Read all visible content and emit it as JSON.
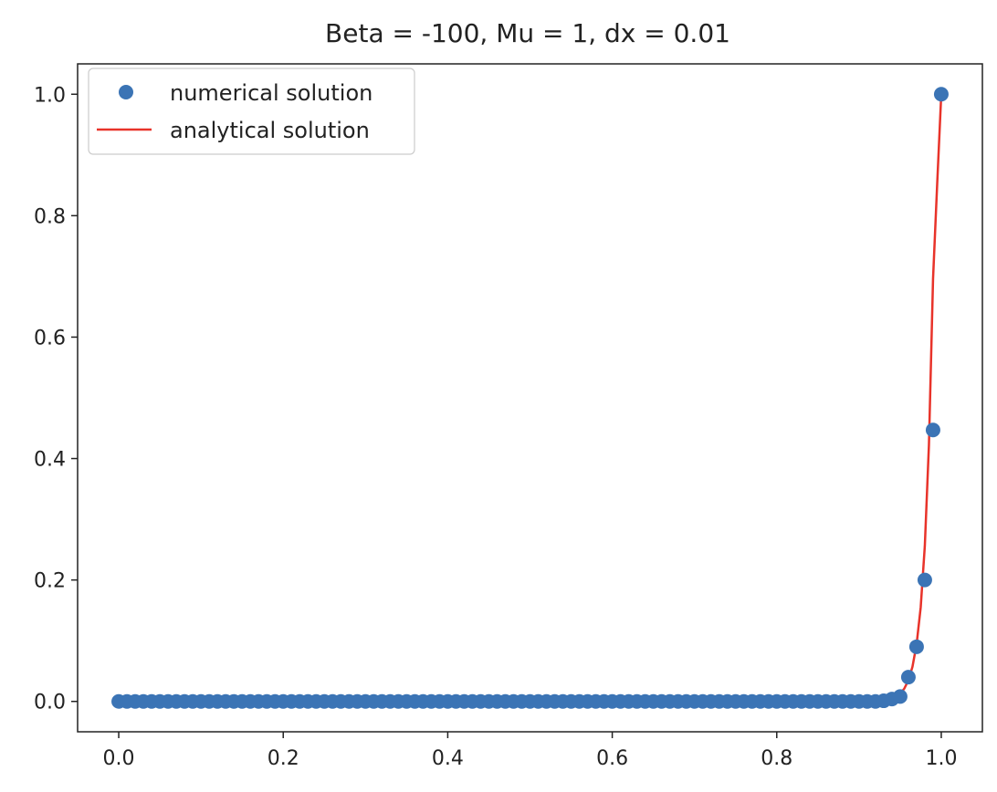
{
  "chart_data": {
    "type": "scatter",
    "title": "Beta = -100, Mu = 1, dx = 0.01",
    "xlabel": "",
    "ylabel": "",
    "xlim": [
      -0.05,
      1.05
    ],
    "ylim": [
      -0.05,
      1.05
    ],
    "xticks": [
      0.0,
      0.2,
      0.4,
      0.6,
      0.8,
      1.0
    ],
    "xtick_labels": [
      "0.0",
      "0.2",
      "0.4",
      "0.6",
      "0.8",
      "1.0"
    ],
    "yticks": [
      0.0,
      0.2,
      0.4,
      0.6,
      0.8,
      1.0
    ],
    "ytick_labels": [
      "0.0",
      "0.2",
      "0.4",
      "0.6",
      "0.8",
      "1.0"
    ],
    "grid": false,
    "legend_position": "upper-left",
    "series": [
      {
        "name": "numerical solution",
        "kind": "scatter",
        "color": "#3b74b5",
        "x": [
          0.0,
          0.01,
          0.02,
          0.03,
          0.04,
          0.05,
          0.06,
          0.07,
          0.08,
          0.09,
          0.1,
          0.11,
          0.12,
          0.13,
          0.14,
          0.15,
          0.16,
          0.17,
          0.18,
          0.19,
          0.2,
          0.21,
          0.22,
          0.23,
          0.24,
          0.25,
          0.26,
          0.27,
          0.28,
          0.29,
          0.3,
          0.31,
          0.32,
          0.33,
          0.34,
          0.35,
          0.36,
          0.37,
          0.38,
          0.39,
          0.4,
          0.41,
          0.42,
          0.43,
          0.44,
          0.45,
          0.46,
          0.47,
          0.48,
          0.49,
          0.5,
          0.51,
          0.52,
          0.53,
          0.54,
          0.55,
          0.56,
          0.57,
          0.58,
          0.59,
          0.6,
          0.61,
          0.62,
          0.63,
          0.64,
          0.65,
          0.66,
          0.67,
          0.68,
          0.69,
          0.7,
          0.71,
          0.72,
          0.73,
          0.74,
          0.75,
          0.76,
          0.77,
          0.78,
          0.79,
          0.8,
          0.81,
          0.82,
          0.83,
          0.84,
          0.85,
          0.86,
          0.87,
          0.88,
          0.89,
          0.9,
          0.91,
          0.92,
          0.93,
          0.94,
          0.95,
          0.96,
          0.97,
          0.98,
          0.99,
          1.0
        ],
        "y": [
          0.0,
          0.0,
          0.0,
          0.0,
          0.0,
          0.0,
          0.0,
          0.0,
          0.0,
          0.0,
          0.0,
          0.0,
          0.0,
          0.0,
          0.0,
          0.0,
          0.0,
          0.0,
          0.0,
          0.0,
          0.0,
          0.0,
          0.0,
          0.0,
          0.0,
          0.0,
          0.0,
          0.0,
          0.0,
          0.0,
          0.0,
          0.0,
          0.0,
          0.0,
          0.0,
          0.0,
          0.0,
          0.0,
          0.0,
          0.0,
          0.0,
          0.0,
          0.0,
          0.0,
          0.0,
          0.0,
          0.0,
          0.0,
          0.0,
          0.0,
          0.0,
          0.0,
          0.0,
          0.0,
          0.0,
          0.0,
          0.0,
          0.0,
          0.0,
          0.0,
          0.0,
          0.0,
          0.0,
          0.0,
          0.0,
          0.0,
          0.0,
          0.0,
          0.0,
          0.0,
          0.0,
          0.0,
          0.0,
          0.0,
          0.0,
          0.0,
          0.0,
          0.0,
          0.0,
          0.0,
          0.0,
          0.0,
          0.0,
          0.0,
          0.0,
          0.0,
          0.0,
          0.0,
          0.0,
          0.0,
          0.0,
          0.0,
          0.0,
          0.001,
          0.004,
          0.008,
          0.04,
          0.09,
          0.2,
          0.447,
          1.0
        ]
      },
      {
        "name": "analytical solution",
        "kind": "line",
        "color": "#e8332a",
        "x": [
          0.0,
          0.85,
          0.88,
          0.9,
          0.91,
          0.92,
          0.925,
          0.93,
          0.935,
          0.94,
          0.945,
          0.95,
          0.955,
          0.96,
          0.965,
          0.97,
          0.975,
          0.98,
          0.985,
          0.99,
          0.995,
          1.0
        ],
        "y": [
          0.0,
          0.0,
          0.0,
          0.0,
          0.0002,
          0.0006,
          0.001,
          0.0017,
          0.0028,
          0.0047,
          0.0077,
          0.0127,
          0.021,
          0.0346,
          0.0571,
          0.0941,
          0.155,
          0.256,
          0.422,
          0.696,
          0.851,
          1.0
        ]
      }
    ]
  }
}
